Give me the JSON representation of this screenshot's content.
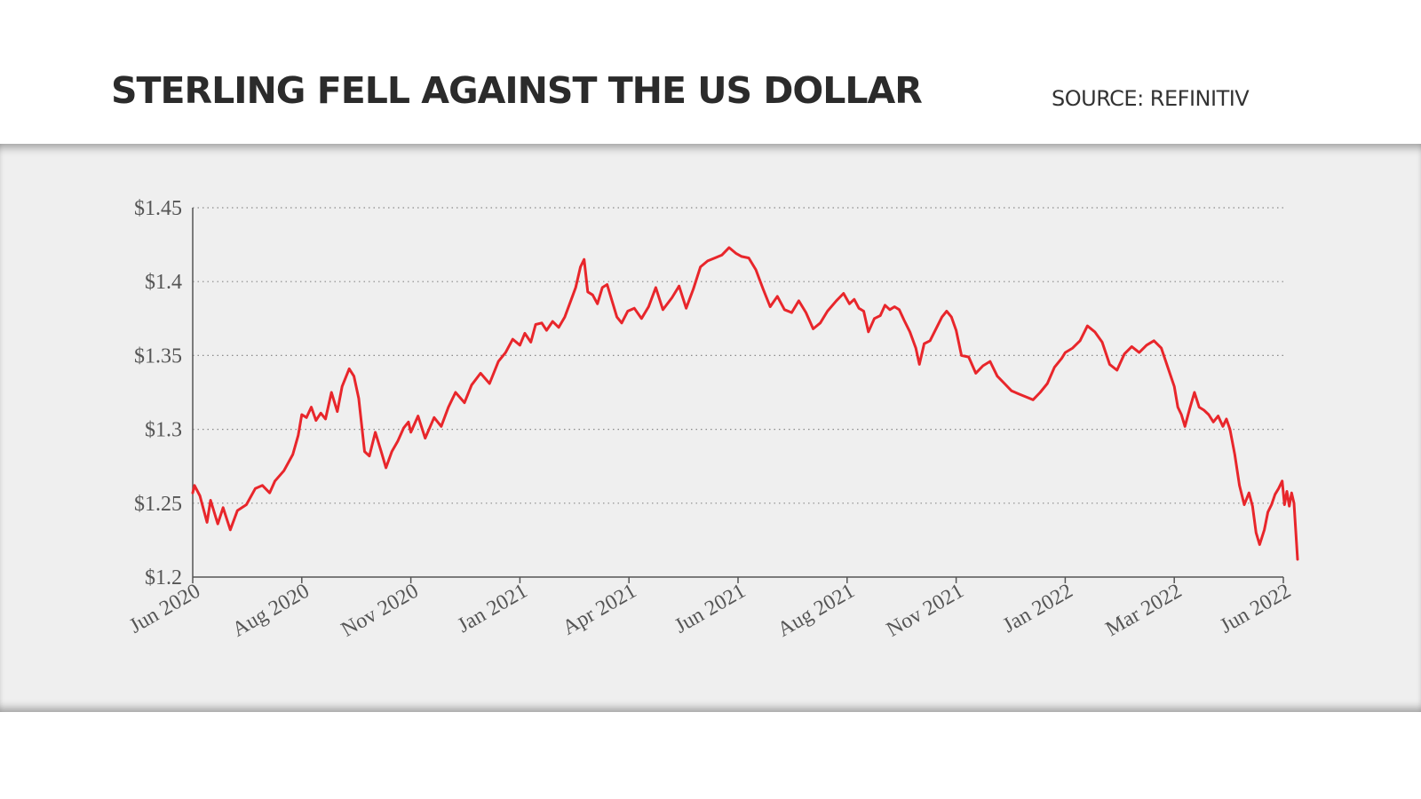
{
  "header": {
    "title": "STERLING FELL AGAINST THE US DOLLAR",
    "source": "SOURCE: REFINITIV"
  },
  "chart_data": {
    "type": "line",
    "title": "STERLING FELL AGAINST THE US DOLLAR",
    "xlabel": "",
    "ylabel": "",
    "ylim": [
      1.2,
      1.45
    ],
    "yticks": [
      1.2,
      1.25,
      1.3,
      1.35,
      1.4,
      1.45
    ],
    "ytick_labels": [
      "$1.2",
      "$1.25",
      "$1.3",
      "$1.35",
      "$1.4",
      "$1.45"
    ],
    "xticks": [
      "2020-06-01",
      "2020-08-01",
      "2020-11-01",
      "2021-01-01",
      "2021-04-01",
      "2021-06-01",
      "2021-08-01",
      "2021-11-01",
      "2022-01-01",
      "2022-03-01",
      "2022-06-01"
    ],
    "xtick_labels": [
      "Jun 2020",
      "Aug 2020",
      "Nov 2020",
      "Jan 2021",
      "Apr 2021",
      "Jun 2021",
      "Aug 2021",
      "Nov 2021",
      "Jan 2022",
      "Mar 2022",
      "Jun 2022"
    ],
    "xtick_spacing": "equal",
    "grid": "horizontal dotted",
    "line_color": "#e8262b",
    "series": [
      {
        "name": "",
        "points": [
          [
            "2020-06-01",
            1.257
          ],
          [
            "2020-06-02",
            1.262
          ],
          [
            "2020-06-05",
            1.255
          ],
          [
            "2020-06-09",
            1.237
          ],
          [
            "2020-06-11",
            1.252
          ],
          [
            "2020-06-15",
            1.236
          ],
          [
            "2020-06-18",
            1.247
          ],
          [
            "2020-06-22",
            1.232
          ],
          [
            "2020-06-26",
            1.245
          ],
          [
            "2020-07-01",
            1.249
          ],
          [
            "2020-07-06",
            1.26
          ],
          [
            "2020-07-10",
            1.262
          ],
          [
            "2020-07-14",
            1.257
          ],
          [
            "2020-07-17",
            1.265
          ],
          [
            "2020-07-22",
            1.272
          ],
          [
            "2020-07-27",
            1.283
          ],
          [
            "2020-07-30",
            1.296
          ],
          [
            "2020-08-01",
            1.31
          ],
          [
            "2020-08-05",
            1.308
          ],
          [
            "2020-08-09",
            1.315
          ],
          [
            "2020-08-13",
            1.306
          ],
          [
            "2020-08-17",
            1.311
          ],
          [
            "2020-08-21",
            1.307
          ],
          [
            "2020-08-26",
            1.325
          ],
          [
            "2020-08-31",
            1.312
          ],
          [
            "2020-09-04",
            1.329
          ],
          [
            "2020-09-10",
            1.341
          ],
          [
            "2020-09-14",
            1.336
          ],
          [
            "2020-09-18",
            1.321
          ],
          [
            "2020-09-23",
            1.285
          ],
          [
            "2020-09-27",
            1.282
          ],
          [
            "2020-10-02",
            1.298
          ],
          [
            "2020-10-07",
            1.285
          ],
          [
            "2020-10-11",
            1.274
          ],
          [
            "2020-10-16",
            1.285
          ],
          [
            "2020-10-21",
            1.292
          ],
          [
            "2020-10-26",
            1.301
          ],
          [
            "2020-10-30",
            1.305
          ],
          [
            "2020-11-01",
            1.298
          ],
          [
            "2020-11-05",
            1.309
          ],
          [
            "2020-11-09",
            1.294
          ],
          [
            "2020-11-14",
            1.308
          ],
          [
            "2020-11-18",
            1.302
          ],
          [
            "2020-11-22",
            1.315
          ],
          [
            "2020-11-26",
            1.325
          ],
          [
            "2020-12-01",
            1.318
          ],
          [
            "2020-12-05",
            1.33
          ],
          [
            "2020-12-10",
            1.338
          ],
          [
            "2020-12-15",
            1.331
          ],
          [
            "2020-12-20",
            1.346
          ],
          [
            "2020-12-24",
            1.352
          ],
          [
            "2020-12-28",
            1.361
          ],
          [
            "2021-01-01",
            1.357
          ],
          [
            "2021-01-05",
            1.365
          ],
          [
            "2021-01-10",
            1.359
          ],
          [
            "2021-01-14",
            1.371
          ],
          [
            "2021-01-19",
            1.372
          ],
          [
            "2021-01-23",
            1.367
          ],
          [
            "2021-01-28",
            1.373
          ],
          [
            "2021-02-02",
            1.369
          ],
          [
            "2021-02-07",
            1.376
          ],
          [
            "2021-02-12",
            1.387
          ],
          [
            "2021-02-16",
            1.396
          ],
          [
            "2021-02-20",
            1.41
          ],
          [
            "2021-02-23",
            1.415
          ],
          [
            "2021-02-26",
            1.393
          ],
          [
            "2021-03-02",
            1.391
          ],
          [
            "2021-03-06",
            1.385
          ],
          [
            "2021-03-10",
            1.396
          ],
          [
            "2021-03-14",
            1.398
          ],
          [
            "2021-03-18",
            1.387
          ],
          [
            "2021-03-22",
            1.376
          ],
          [
            "2021-03-26",
            1.372
          ],
          [
            "2021-03-31",
            1.38
          ],
          [
            "2021-04-04",
            1.382
          ],
          [
            "2021-04-08",
            1.375
          ],
          [
            "2021-04-12",
            1.383
          ],
          [
            "2021-04-16",
            1.396
          ],
          [
            "2021-04-20",
            1.381
          ],
          [
            "2021-04-25",
            1.389
          ],
          [
            "2021-04-29",
            1.397
          ],
          [
            "2021-05-03",
            1.382
          ],
          [
            "2021-05-07",
            1.395
          ],
          [
            "2021-05-11",
            1.41
          ],
          [
            "2021-05-15",
            1.414
          ],
          [
            "2021-05-19",
            1.416
          ],
          [
            "2021-05-23",
            1.418
          ],
          [
            "2021-05-27",
            1.423
          ],
          [
            "2021-05-31",
            1.419
          ],
          [
            "2021-06-03",
            1.417
          ],
          [
            "2021-06-07",
            1.416
          ],
          [
            "2021-06-11",
            1.408
          ],
          [
            "2021-06-15",
            1.395
          ],
          [
            "2021-06-19",
            1.383
          ],
          [
            "2021-06-23",
            1.39
          ],
          [
            "2021-06-27",
            1.381
          ],
          [
            "2021-07-01",
            1.379
          ],
          [
            "2021-07-05",
            1.387
          ],
          [
            "2021-07-09",
            1.379
          ],
          [
            "2021-07-13",
            1.368
          ],
          [
            "2021-07-17",
            1.372
          ],
          [
            "2021-07-21",
            1.38
          ],
          [
            "2021-07-26",
            1.387
          ],
          [
            "2021-07-30",
            1.392
          ],
          [
            "2021-08-03",
            1.385
          ],
          [
            "2021-08-07",
            1.388
          ],
          [
            "2021-08-11",
            1.382
          ],
          [
            "2021-08-15",
            1.38
          ],
          [
            "2021-08-19",
            1.366
          ],
          [
            "2021-08-24",
            1.375
          ],
          [
            "2021-08-29",
            1.377
          ],
          [
            "2021-09-02",
            1.384
          ],
          [
            "2021-09-06",
            1.381
          ],
          [
            "2021-09-10",
            1.383
          ],
          [
            "2021-09-14",
            1.381
          ],
          [
            "2021-09-18",
            1.374
          ],
          [
            "2021-09-23",
            1.366
          ],
          [
            "2021-09-28",
            1.355
          ],
          [
            "2021-10-01",
            1.344
          ],
          [
            "2021-10-05",
            1.358
          ],
          [
            "2021-10-10",
            1.36
          ],
          [
            "2021-10-15",
            1.368
          ],
          [
            "2021-10-20",
            1.376
          ],
          [
            "2021-10-24",
            1.38
          ],
          [
            "2021-10-28",
            1.376
          ],
          [
            "2021-11-01",
            1.367
          ],
          [
            "2021-11-04",
            1.35
          ],
          [
            "2021-11-08",
            1.349
          ],
          [
            "2021-11-12",
            1.338
          ],
          [
            "2021-11-16",
            1.343
          ],
          [
            "2021-11-20",
            1.346
          ],
          [
            "2021-11-24",
            1.336
          ],
          [
            "2021-11-28",
            1.331
          ],
          [
            "2021-12-02",
            1.326
          ],
          [
            "2021-12-06",
            1.324
          ],
          [
            "2021-12-10",
            1.322
          ],
          [
            "2021-12-14",
            1.32
          ],
          [
            "2021-12-18",
            1.325
          ],
          [
            "2021-12-22",
            1.331
          ],
          [
            "2021-12-26",
            1.342
          ],
          [
            "2021-12-30",
            1.348
          ],
          [
            "2022-01-01",
            1.352
          ],
          [
            "2022-01-05",
            1.355
          ],
          [
            "2022-01-09",
            1.36
          ],
          [
            "2022-01-13",
            1.37
          ],
          [
            "2022-01-17",
            1.366
          ],
          [
            "2022-01-21",
            1.359
          ],
          [
            "2022-01-25",
            1.344
          ],
          [
            "2022-01-29",
            1.34
          ],
          [
            "2022-02-02",
            1.351
          ],
          [
            "2022-02-06",
            1.356
          ],
          [
            "2022-02-10",
            1.352
          ],
          [
            "2022-02-14",
            1.357
          ],
          [
            "2022-02-18",
            1.36
          ],
          [
            "2022-02-22",
            1.355
          ],
          [
            "2022-02-26",
            1.34
          ],
          [
            "2022-03-01",
            1.329
          ],
          [
            "2022-03-04",
            1.315
          ],
          [
            "2022-03-07",
            1.31
          ],
          [
            "2022-03-10",
            1.302
          ],
          [
            "2022-03-14",
            1.314
          ],
          [
            "2022-03-18",
            1.325
          ],
          [
            "2022-03-22",
            1.315
          ],
          [
            "2022-03-26",
            1.313
          ],
          [
            "2022-03-30",
            1.31
          ],
          [
            "2022-04-03",
            1.305
          ],
          [
            "2022-04-07",
            1.309
          ],
          [
            "2022-04-11",
            1.302
          ],
          [
            "2022-04-14",
            1.307
          ],
          [
            "2022-04-17",
            1.3
          ],
          [
            "2022-04-21",
            1.283
          ],
          [
            "2022-04-25",
            1.262
          ],
          [
            "2022-04-29",
            1.249
          ],
          [
            "2022-05-03",
            1.257
          ],
          [
            "2022-05-06",
            1.248
          ],
          [
            "2022-05-09",
            1.23
          ],
          [
            "2022-05-12",
            1.222
          ],
          [
            "2022-05-16",
            1.232
          ],
          [
            "2022-05-19",
            1.244
          ],
          [
            "2022-05-22",
            1.249
          ],
          [
            "2022-05-25",
            1.256
          ],
          [
            "2022-05-28",
            1.26
          ],
          [
            "2022-05-31",
            1.265
          ],
          [
            "2022-06-02",
            1.249
          ],
          [
            "2022-06-04",
            1.258
          ],
          [
            "2022-06-06",
            1.248
          ],
          [
            "2022-06-08",
            1.257
          ],
          [
            "2022-06-10",
            1.25
          ],
          [
            "2022-06-13",
            1.212
          ]
        ]
      }
    ]
  }
}
